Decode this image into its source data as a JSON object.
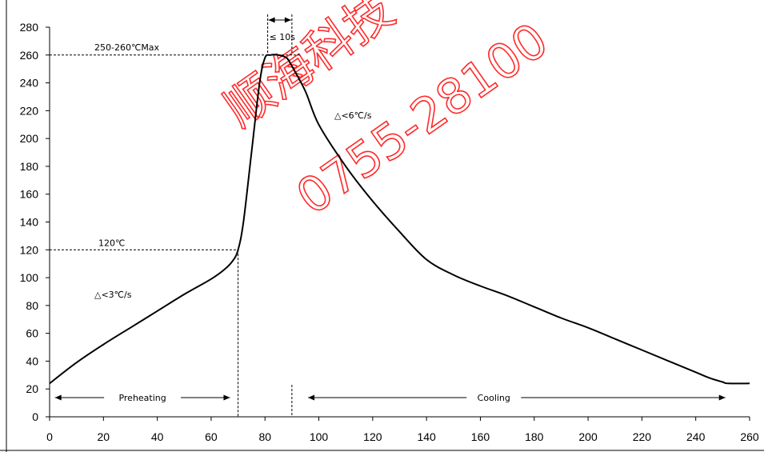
{
  "chart_data": {
    "type": "line",
    "title": "",
    "xlabel": "",
    "ylabel": "",
    "xlim": [
      0,
      260
    ],
    "ylim": [
      0,
      280
    ],
    "x_ticks": [
      0,
      20,
      40,
      60,
      80,
      100,
      120,
      140,
      160,
      180,
      200,
      220,
      240,
      260
    ],
    "y_ticks": [
      0,
      20,
      40,
      60,
      80,
      100,
      120,
      140,
      160,
      180,
      200,
      220,
      240,
      260,
      280
    ],
    "grid": false,
    "legend": "none",
    "line_color": "#000000",
    "series": [
      {
        "x": [
          0,
          10,
          20,
          30,
          40,
          50,
          60,
          65,
          68,
          70,
          72,
          75,
          78,
          80,
          82,
          85,
          88,
          90,
          95,
          100,
          110,
          120,
          130,
          140,
          150,
          160,
          170,
          180,
          190,
          200,
          210,
          220,
          230,
          240,
          245,
          250,
          252,
          260
        ],
        "y": [
          24,
          39,
          52,
          64,
          76,
          88,
          99,
          106,
          112,
          120,
          140,
          190,
          240,
          258,
          260,
          260,
          258,
          252,
          234,
          210,
          180,
          155,
          133,
          113,
          102,
          94,
          87,
          79,
          71,
          64,
          56,
          48,
          40,
          32,
          28,
          25,
          24,
          24
        ]
      }
    ],
    "annotations": {
      "peak_label": "250-260℃Max",
      "peak_value": 260,
      "preheat_label": "120℃",
      "preheat_value": 120,
      "preheat_end_x": 70,
      "reflow_end_x": 90,
      "time_window_label": "≤ 10s",
      "time_window_x": [
        81,
        90
      ],
      "ramp_up_label": "△<3℃/s",
      "ramp_down_label": "△<6℃/s",
      "preheating_label": "Preheating",
      "preheating_range": [
        2,
        67
      ],
      "cooling_label": "Cooling",
      "cooling_range": [
        96,
        251
      ]
    },
    "watermark": {
      "line1": "顺海科技",
      "line2": "0755-28100",
      "color": "#ff2a2a"
    }
  }
}
